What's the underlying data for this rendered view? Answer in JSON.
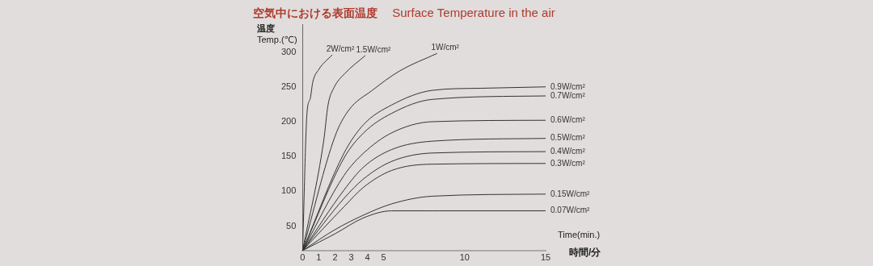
{
  "chart_data": {
    "type": "line",
    "title": "空気中における表面温度",
    "subtitle": "Surface Temperature in the air",
    "xlabel": "Time(min.)\n時間/分",
    "ylabel": "温度\nTemp.(℃)",
    "xlim": [
      0,
      15
    ],
    "ylim": [
      15,
      340
    ],
    "xticks": [
      0,
      1,
      2,
      3,
      4,
      5,
      10,
      15
    ],
    "yticks": [
      50,
      100,
      150,
      200,
      250,
      300
    ],
    "grid": false,
    "legend": false,
    "marker": "none",
    "line_style": "solid",
    "series": [
      {
        "name": "2W/cm²",
        "color": "#333333",
        "x": [
          0,
          0.27,
          0.47,
          0.63,
          1.0,
          1.83
        ],
        "values": [
          15,
          212,
          233,
          257,
          275,
          296
        ]
      },
      {
        "name": "1.5W/cm²",
        "color": "#333333",
        "x": [
          0,
          1.3,
          1.57,
          1.94,
          2.6,
          3.87
        ],
        "values": [
          15,
          172,
          224,
          249,
          269,
          295
        ]
      },
      {
        "name": "1W/cm²",
        "color": "#333333",
        "x": [
          0,
          2.0,
          2.83,
          4.3,
          6.0,
          8.3
        ],
        "values": [
          15,
          179,
          216,
          245,
          273,
          298
        ]
      },
      {
        "name": "0.9W/cm²",
        "color": "#333333",
        "x": [
          0,
          2.56,
          3.77,
          5.5,
          8,
          11,
          15
        ],
        "values": [
          15,
          155,
          196,
          224,
          245,
          248,
          250
        ]
      },
      {
        "name": "0.7W/cm²",
        "color": "#333333",
        "x": [
          0,
          2.56,
          3.77,
          5.5,
          8,
          15
        ],
        "values": [
          15,
          148,
          184,
          212,
          232,
          237
        ]
      },
      {
        "name": "0.6W/cm²",
        "color": "#333333",
        "x": [
          0,
          2.56,
          3.77,
          5.5,
          8,
          15
        ],
        "values": [
          15,
          123,
          155,
          184,
          200,
          202
        ]
      },
      {
        "name": "0.5W/cm²",
        "color": "#333333",
        "x": [
          0,
          2.56,
          3.77,
          5.5,
          8,
          15
        ],
        "values": [
          15,
          102,
          135,
          160,
          172,
          176
        ]
      },
      {
        "name": "0.4W/cm²",
        "color": "#333333",
        "x": [
          0,
          2.56,
          3.77,
          5.5,
          8,
          15
        ],
        "values": [
          15,
          90,
          118,
          143,
          155,
          157
        ]
      },
      {
        "name": "0.3W/cm²",
        "color": "#333333",
        "x": [
          0,
          2.56,
          3.77,
          5.5,
          8,
          15
        ],
        "values": [
          15,
          78,
          106,
          130,
          139,
          140
        ]
      },
      {
        "name": "0.15W/cm²",
        "color": "#333333",
        "x": [
          0,
          2.0,
          3.77,
          5.5,
          8,
          15
        ],
        "values": [
          15,
          45,
          66,
          82,
          93,
          96
        ]
      },
      {
        "name": "0.07W/cm²",
        "color": "#333333",
        "x": [
          0,
          2.0,
          3.77,
          5.5,
          8,
          15
        ],
        "values": [
          15,
          39,
          62,
          72,
          72,
          72
        ]
      }
    ]
  }
}
